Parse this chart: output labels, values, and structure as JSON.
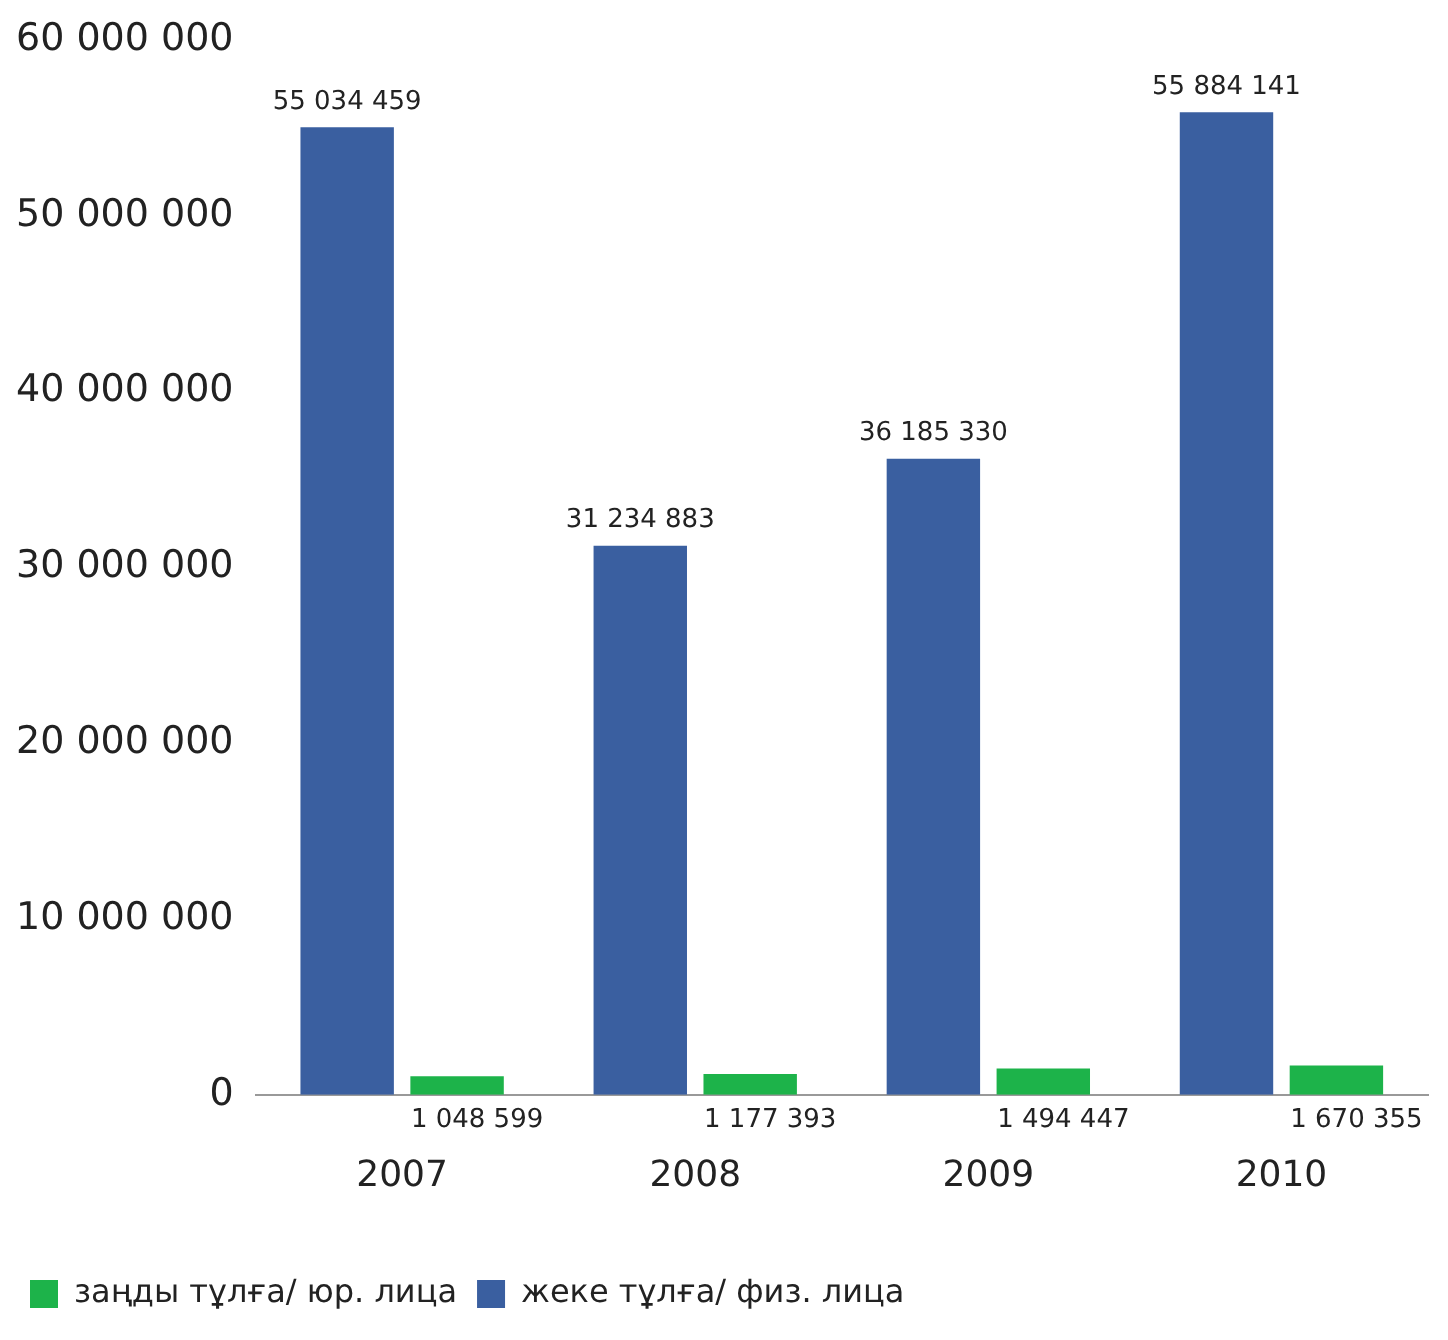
{
  "chart_data": {
    "type": "bar",
    "categories": [
      "2007",
      "2008",
      "2009",
      "2010"
    ],
    "series": [
      {
        "name": "жеке тұлға/ физ. лица",
        "color": "#3a5fa0",
        "values": [
          55034459,
          31234883,
          36185330,
          55884141
        ]
      },
      {
        "name": "заңды тұлға/ юр. лица",
        "color": "#1db34a",
        "values": [
          1048599,
          1177393,
          1494447,
          1670355
        ]
      }
    ],
    "ylim": [
      0,
      60000000
    ],
    "yticks": [
      {
        "value": 0,
        "label": "0"
      },
      {
        "value": 10000000,
        "label": "10 000 000"
      },
      {
        "value": 20000000,
        "label": "20 000 000"
      },
      {
        "value": 30000000,
        "label": "30 000 000"
      },
      {
        "value": 40000000,
        "label": "40 000 000"
      },
      {
        "value": 50000000,
        "label": "50 000 000"
      },
      {
        "value": 60000000,
        "label": "60 000 000"
      }
    ],
    "grid": false,
    "legend": "bottom",
    "data_labels": true
  }
}
